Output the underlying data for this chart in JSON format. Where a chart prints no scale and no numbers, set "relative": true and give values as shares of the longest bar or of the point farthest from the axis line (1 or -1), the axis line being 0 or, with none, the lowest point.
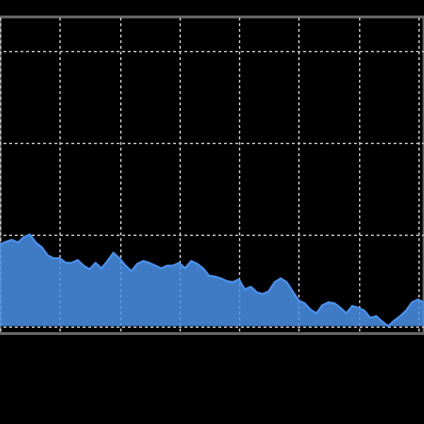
{
  "chart_data": {
    "type": "area",
    "relative": true,
    "grid": true,
    "color": "#4a8fe8",
    "categories": [
      null,
      null,
      null,
      null,
      null,
      null,
      null,
      null,
      null,
      null,
      null,
      null,
      null,
      null,
      null,
      null,
      null,
      null,
      null,
      null,
      null,
      null,
      null,
      null,
      null,
      null,
      null,
      null,
      null,
      null,
      null,
      null,
      null,
      null,
      null,
      null,
      null,
      null,
      null,
      null,
      null,
      null,
      null,
      null,
      null,
      null,
      null,
      null,
      null,
      null,
      null,
      null,
      null,
      null,
      null,
      null,
      null,
      null,
      null,
      null,
      null,
      null,
      null,
      null,
      null,
      null,
      null,
      null,
      null,
      null,
      null,
      null
    ],
    "values": [
      0.89,
      0.92,
      0.94,
      0.91,
      0.97,
      1,
      0.91,
      0.86,
      0.77,
      0.74,
      0.74,
      0.69,
      0.69,
      0.72,
      0.66,
      0.62,
      0.69,
      0.63,
      0.71,
      0.8,
      0.74,
      0.66,
      0.6,
      0.68,
      0.71,
      0.69,
      0.66,
      0.63,
      0.66,
      0.66,
      0.69,
      0.63,
      0.71,
      0.68,
      0.63,
      0.55,
      0.54,
      0.52,
      0.49,
      0.48,
      0.51,
      0.4,
      0.43,
      0.37,
      0.35,
      0.38,
      0.48,
      0.52,
      0.48,
      0.38,
      0.28,
      0.25,
      0.18,
      0.14,
      0.23,
      0.26,
      0.25,
      0.2,
      0.14,
      0.22,
      0.2,
      0.17,
      0.09,
      0.11,
      0.05,
      0,
      0.06,
      0.11,
      0.17,
      0.26,
      0.29,
      0.26
    ]
  }
}
